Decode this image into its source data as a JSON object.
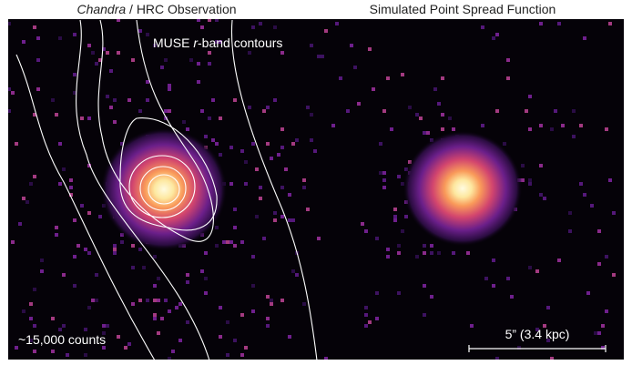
{
  "panels": [
    {
      "title": {
        "italic": "Chandra",
        "rest": " / HRC Observation"
      },
      "contour_label": {
        "before": "MUSE ",
        "italic": "r",
        "after": "-band contours"
      },
      "counts_label": "~15,000 counts"
    },
    {
      "title": "Simulated Point Spread Function",
      "scale_bar_label": "5” (3.4 kpc)"
    }
  ]
}
